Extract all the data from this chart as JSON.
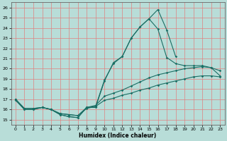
{
  "xlabel": "Humidex (Indice chaleur)",
  "bg_color": "#b8ddd8",
  "grid_color": "#e08080",
  "line_color": "#1a6e64",
  "xlim": [
    -0.5,
    23.5
  ],
  "ylim": [
    14.5,
    26.5
  ],
  "xticks": [
    0,
    1,
    2,
    3,
    4,
    5,
    6,
    7,
    8,
    9,
    10,
    11,
    12,
    13,
    14,
    15,
    16,
    17,
    18,
    19,
    20,
    21,
    22,
    23
  ],
  "yticks": [
    15,
    16,
    17,
    18,
    19,
    20,
    21,
    22,
    23,
    24,
    25,
    26
  ],
  "line1_x": [
    0,
    1,
    2,
    3,
    4,
    5,
    6,
    7,
    8,
    9,
    10,
    11,
    12,
    13,
    14,
    15,
    16,
    17,
    18
  ],
  "line1_y": [
    16.9,
    16.0,
    16.0,
    16.2,
    16.0,
    15.5,
    15.3,
    15.2,
    16.2,
    16.2,
    18.8,
    20.6,
    21.2,
    23.0,
    24.1,
    24.9,
    25.8,
    23.8,
    21.2
  ],
  "line2_x": [
    0,
    1,
    2,
    3,
    4,
    5,
    6,
    7,
    8,
    9,
    10,
    11,
    12,
    13,
    14,
    15,
    16,
    17,
    18,
    19,
    20,
    21,
    22,
    23
  ],
  "line2_y": [
    17.0,
    16.0,
    16.0,
    16.2,
    16.0,
    15.5,
    15.3,
    15.2,
    16.2,
    16.3,
    18.9,
    20.5,
    21.2,
    23.0,
    24.1,
    24.9,
    23.9,
    21.1,
    20.5,
    20.3,
    20.3,
    20.3,
    20.1,
    19.3
  ],
  "line3_x": [
    0,
    1,
    2,
    3,
    4,
    5,
    6,
    7,
    8,
    9,
    10,
    11,
    12,
    13,
    14,
    15,
    16,
    17,
    18,
    19,
    20,
    21,
    22,
    23
  ],
  "line3_y": [
    17.0,
    16.1,
    16.1,
    16.2,
    16.0,
    15.6,
    15.5,
    15.4,
    16.2,
    16.4,
    17.3,
    17.6,
    17.9,
    18.3,
    18.7,
    19.1,
    19.4,
    19.6,
    19.8,
    20.0,
    20.1,
    20.2,
    20.1,
    19.8
  ],
  "line4_x": [
    0,
    1,
    2,
    3,
    4,
    5,
    6,
    7,
    8,
    9,
    10,
    11,
    12,
    13,
    14,
    15,
    16,
    17,
    18,
    19,
    20,
    21,
    22,
    23
  ],
  "line4_y": [
    17.0,
    16.1,
    16.1,
    16.2,
    16.0,
    15.6,
    15.5,
    15.4,
    16.1,
    16.3,
    16.9,
    17.1,
    17.4,
    17.6,
    17.9,
    18.1,
    18.4,
    18.6,
    18.8,
    19.0,
    19.2,
    19.3,
    19.3,
    19.2
  ]
}
